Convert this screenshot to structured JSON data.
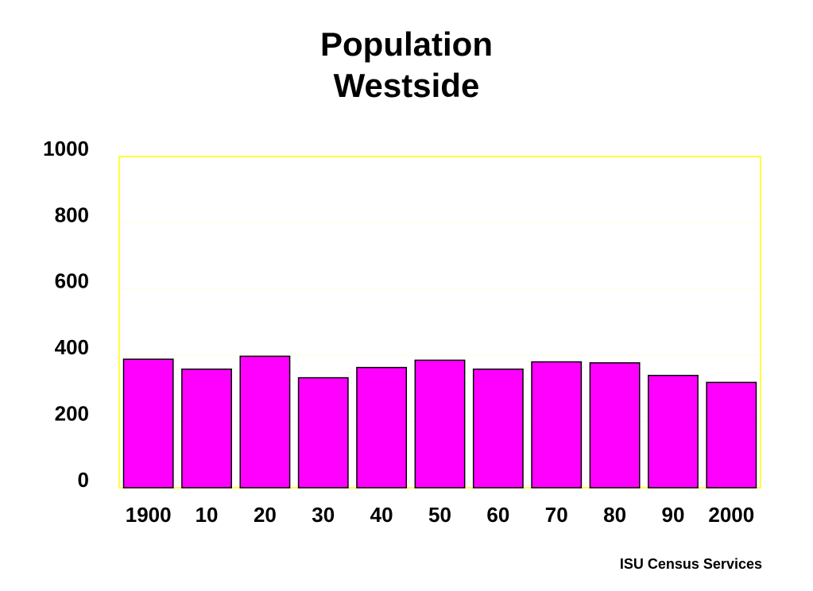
{
  "chart_data": {
    "type": "bar",
    "title": [
      "Population",
      "Westside"
    ],
    "xlabel": "",
    "ylabel": "",
    "categories": [
      "1900",
      "10",
      "20",
      "30",
      "40",
      "50",
      "60",
      "70",
      "80",
      "90",
      "2000"
    ],
    "values": [
      388,
      358,
      397,
      332,
      363,
      385,
      358,
      380,
      377,
      339,
      318
    ],
    "ylim": [
      0,
      1000
    ],
    "yticks": [
      0,
      200,
      400,
      600,
      800,
      1000
    ],
    "grid": "horizontal",
    "legend": "none",
    "colors": {
      "bar_fill": "#ff00ff",
      "bar_stroke": "#000000",
      "plot_border": "#ffff00",
      "gridline": "#fffde0",
      "text": "#000000"
    }
  },
  "footer": {
    "source": "ISU Census Services"
  }
}
